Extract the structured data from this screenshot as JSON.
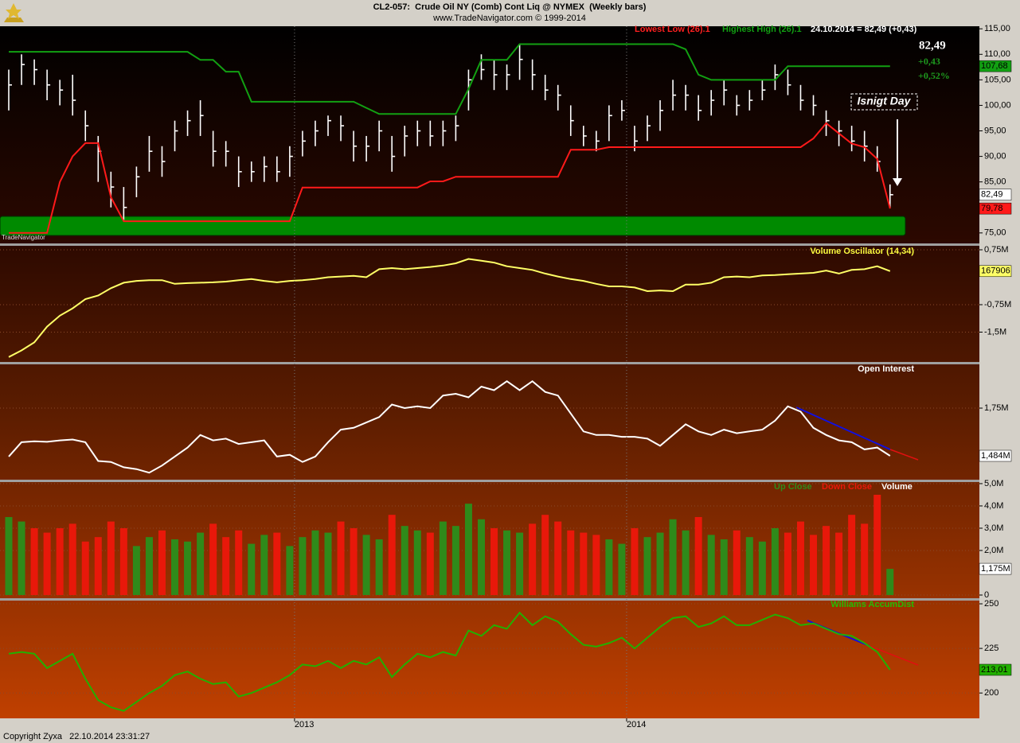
{
  "header": {
    "symbol": "CL2-057:  Crude Oil NY (Comb) Cont Liq @ NYMEX  (Weekly bars)",
    "source": "www.TradeNavigator.com © 1999-2014"
  },
  "footer": "Copyright Zyxa   22.10.2014 23:31:27",
  "chart_data": [
    {
      "type": "ohlc",
      "watermark": "TradeNavigator",
      "quote": "24.10.2014 = 82,49 (+0,43)",
      "last": "82,49",
      "change": "+0,43",
      "change_pct": "+0,52%",
      "annotation": "Isnigt Day",
      "color": "#ffffff",
      "last_label": "82,49",
      "high": [
        107,
        110,
        109,
        107,
        105,
        106,
        99,
        94,
        87,
        84,
        88,
        94,
        92,
        97,
        99,
        101,
        95,
        93,
        90,
        89,
        90,
        90,
        92,
        95,
        97,
        98,
        98,
        95,
        94,
        97,
        94,
        96,
        97,
        97,
        97,
        98,
        107,
        110,
        109,
        108,
        112,
        109,
        106,
        104,
        100,
        96,
        95,
        100,
        101,
        96,
        98,
        101,
        105,
        104,
        102,
        103,
        105,
        102,
        103,
        105,
        108,
        107,
        104,
        102,
        99,
        97,
        96,
        95,
        92,
        84.5
      ],
      "low": [
        99,
        104,
        104,
        101,
        100,
        98,
        93,
        85,
        80,
        77.5,
        82,
        87,
        86,
        91,
        94,
        94,
        88,
        88,
        84,
        85,
        85,
        85,
        86,
        90,
        92,
        94,
        93,
        89,
        89,
        91,
        87,
        90,
        92,
        92,
        92,
        93,
        99,
        105,
        103,
        103,
        105,
        103,
        101,
        99,
        94,
        92,
        91,
        93,
        97,
        91,
        93,
        95,
        99,
        99,
        97,
        98,
        100,
        98,
        99,
        101,
        103,
        102,
        99,
        98,
        94,
        92,
        91,
        89,
        87,
        79.8
      ],
      "close": [
        104,
        108,
        107,
        104,
        103,
        101,
        96,
        91,
        84,
        80,
        86,
        91,
        89,
        95,
        97,
        98,
        91,
        91,
        87,
        87,
        88,
        87,
        90,
        93,
        95,
        97,
        96,
        92,
        92,
        95,
        90,
        94,
        95,
        94,
        95,
        96,
        105,
        107,
        106,
        106,
        109,
        106,
        103,
        102,
        97,
        94,
        93,
        98,
        99,
        93,
        96,
        99,
        102,
        102,
        99,
        101,
        103,
        100,
        101,
        103,
        106,
        104,
        101,
        100,
        97,
        95,
        93,
        92,
        89,
        82.49
      ],
      "series": [
        {
          "name": "Lowest Low (26).1",
          "color": "#ff1a1a",
          "last_label": "79,78",
          "values": [
            75,
            75,
            75,
            75,
            85,
            90,
            92.6,
            92.6,
            82,
            77.3,
            77.3,
            77.3,
            77.3,
            77.3,
            77.3,
            77.3,
            77.3,
            77.3,
            77.3,
            77.3,
            77.3,
            77.3,
            77.3,
            83.9,
            83.9,
            83.9,
            83.9,
            83.9,
            83.9,
            83.9,
            83.9,
            83.9,
            83.9,
            85.1,
            85.1,
            86,
            86,
            86,
            86,
            86,
            86,
            86,
            86,
            86,
            91.3,
            91.3,
            91.3,
            91.8,
            91.8,
            91.8,
            91.8,
            91.8,
            91.8,
            91.8,
            91.8,
            91.8,
            91.8,
            91.8,
            91.8,
            91.8,
            91.8,
            91.8,
            91.8,
            93.5,
            96.5,
            94.5,
            92.5,
            91.8,
            89.5,
            79.78
          ]
        },
        {
          "name": "Highest High (26).1",
          "color": "#12a012",
          "last_label": "107,68",
          "values": [
            110.5,
            110.5,
            110.5,
            110.5,
            110.5,
            110.5,
            110.5,
            110.5,
            110.5,
            110.5,
            110.5,
            110.5,
            110.5,
            110.5,
            110.5,
            108.9,
            108.9,
            106.6,
            106.6,
            100.7,
            100.7,
            100.7,
            100.7,
            100.7,
            100.7,
            100.7,
            100.7,
            100.7,
            99.5,
            98.3,
            98.3,
            98.3,
            98.3,
            98.3,
            98.3,
            98.3,
            103.2,
            108.9,
            108.9,
            108.9,
            112,
            112,
            112,
            112,
            112,
            112,
            112,
            112,
            112,
            112,
            112,
            112,
            112,
            111,
            106,
            105,
            105,
            105,
            105,
            105,
            105,
            107.68,
            107.68,
            107.68,
            107.68,
            107.68,
            107.68,
            107.68,
            107.68,
            107.68
          ]
        }
      ],
      "ylim": [
        73.1,
        115.5
      ],
      "grid": false,
      "yticks": [
        {
          "value": 115,
          "label": "115,00"
        },
        {
          "value": 110,
          "label": "110,00"
        },
        {
          "value": 105,
          "label": "105,00"
        },
        {
          "value": 100,
          "label": "100,00"
        },
        {
          "value": 95,
          "label": "95,00"
        },
        {
          "value": 90,
          "label": "90,00"
        },
        {
          "value": 85,
          "label": "85,00"
        },
        {
          "value": 75,
          "label": "75,00"
        }
      ]
    },
    {
      "type": "line",
      "ylim": [
        -2.315,
        0.837
      ],
      "grid": true,
      "yticks": [
        {
          "value": 0.75,
          "label": "0,75M"
        },
        {
          "value": -0.75,
          "label": "-0,75M"
        },
        {
          "value": -1.5,
          "label": "-1,5M"
        }
      ],
      "series": [
        {
          "name": "Volume Oscillator (14,34)",
          "color": "#ffff66",
          "last_label": "167906",
          "values": [
            -2.18,
            -2.0,
            -1.78,
            -1.35,
            -1.05,
            -0.85,
            -0.6,
            -0.5,
            -0.3,
            -0.15,
            -0.1,
            -0.08,
            -0.08,
            -0.18,
            -0.16,
            -0.15,
            -0.14,
            -0.12,
            -0.08,
            -0.05,
            -0.1,
            -0.14,
            -0.1,
            -0.08,
            -0.05,
            0,
            0.02,
            0.04,
            0,
            0.22,
            0.25,
            0.22,
            0.25,
            0.28,
            0.32,
            0.38,
            0.5,
            0.45,
            0.4,
            0.3,
            0.25,
            0.2,
            0.1,
            0.02,
            -0.05,
            -0.1,
            -0.18,
            -0.25,
            -0.25,
            -0.28,
            -0.38,
            -0.36,
            -0.38,
            -0.2,
            -0.2,
            -0.15,
            0,
            0.02,
            0,
            0.05,
            0.06,
            0.08,
            0.1,
            0.12,
            0.18,
            0.1,
            0.2,
            0.22,
            0.3,
            0.167906
          ]
        }
      ]
    },
    {
      "type": "line",
      "ylim": [
        1.351,
        1.994
      ],
      "grid": true,
      "yticks": [
        {
          "value": 1.75,
          "label": "1,75M"
        }
      ],
      "series": [
        {
          "name": "Open Interest",
          "color": "#ffffff",
          "last_label": "1,484M",
          "values": [
            1.48,
            1.56,
            1.565,
            1.562,
            1.57,
            1.575,
            1.56,
            1.455,
            1.45,
            1.42,
            1.41,
            1.39,
            1.43,
            1.48,
            1.53,
            1.6,
            1.57,
            1.58,
            1.55,
            1.56,
            1.57,
            1.48,
            1.49,
            1.45,
            1.48,
            1.56,
            1.63,
            1.64,
            1.67,
            1.7,
            1.77,
            1.75,
            1.76,
            1.75,
            1.82,
            1.83,
            1.81,
            1.87,
            1.85,
            1.9,
            1.85,
            1.9,
            1.84,
            1.82,
            1.72,
            1.62,
            1.6,
            1.6,
            1.59,
            1.59,
            1.58,
            1.54,
            1.6,
            1.66,
            1.62,
            1.6,
            1.63,
            1.61,
            1.62,
            1.63,
            1.68,
            1.76,
            1.73,
            1.64,
            1.6,
            1.57,
            1.56,
            1.52,
            1.53,
            1.484
          ]
        }
      ]
    },
    {
      "type": "bar",
      "title": "Volume",
      "ylim": [
        -0.143,
        5.07
      ],
      "grid": true,
      "yticks": [
        {
          "value": 5,
          "label": "5,0M"
        },
        {
          "value": 4,
          "label": "4,0M"
        },
        {
          "value": 3,
          "label": "3,0M"
        },
        {
          "value": 2,
          "label": "2,0M"
        },
        0
      ],
      "series": [
        {
          "name": "Up Close",
          "color": "#2f8a1a",
          "last_label": "1,175M",
          "values": [
            3.5,
            3.3,
            null,
            null,
            null,
            null,
            null,
            null,
            null,
            null,
            2.2,
            2.6,
            null,
            2.5,
            2.4,
            2.8,
            null,
            null,
            null,
            2.3,
            2.7,
            null,
            2.2,
            2.6,
            2.9,
            2.8,
            null,
            null,
            2.7,
            2.5,
            null,
            3.1,
            2.9,
            null,
            3.3,
            3.1,
            4.1,
            3.4,
            null,
            2.9,
            2.8,
            null,
            null,
            null,
            null,
            null,
            null,
            2.5,
            2.3,
            null,
            2.6,
            2.8,
            3.4,
            2.9,
            null,
            2.7,
            2.5,
            null,
            2.6,
            2.4,
            3.0,
            null,
            null,
            null,
            null,
            null,
            null,
            null,
            null,
            1.175
          ]
        },
        {
          "name": "Down Close",
          "color": "#e8180a",
          "values": [
            null,
            null,
            3.0,
            2.8,
            3.0,
            3.2,
            2.4,
            2.6,
            3.3,
            3.0,
            null,
            null,
            2.9,
            null,
            null,
            null,
            3.2,
            2.6,
            2.9,
            null,
            null,
            2.8,
            null,
            null,
            null,
            null,
            3.3,
            3.0,
            null,
            null,
            3.6,
            null,
            null,
            2.8,
            null,
            null,
            null,
            null,
            3.0,
            null,
            null,
            3.2,
            3.6,
            3.3,
            2.9,
            2.8,
            2.7,
            null,
            null,
            3.0,
            null,
            null,
            null,
            null,
            3.5,
            null,
            null,
            2.9,
            null,
            null,
            null,
            2.8,
            3.3,
            2.7,
            3.1,
            2.8,
            3.6,
            3.2,
            4.5,
            null
          ]
        }
      ]
    },
    {
      "type": "line",
      "ylim": [
        185.8,
        251.8
      ],
      "grid": true,
      "yticks": [
        250,
        225,
        200
      ],
      "categories": [
        null,
        null,
        null,
        null,
        null,
        null,
        null,
        null,
        null,
        null,
        null,
        null,
        null,
        null,
        null,
        null,
        null,
        null,
        null,
        null,
        null,
        null,
        null,
        "2013",
        null,
        null,
        null,
        null,
        null,
        null,
        null,
        null,
        null,
        null,
        null,
        null,
        null,
        null,
        null,
        null,
        null,
        null,
        null,
        null,
        null,
        null,
        null,
        null,
        null,
        "2014",
        null,
        null,
        null,
        null,
        null,
        null,
        null,
        null,
        null,
        null,
        null,
        null,
        null,
        null,
        null,
        null,
        null,
        null,
        null,
        null
      ],
      "series": [
        {
          "name": "Williams AccumDist",
          "color": "#22b000",
          "last_label": "213,01",
          "values": [
            222,
            223,
            222,
            214,
            218,
            222,
            208,
            196,
            192,
            190,
            195,
            200,
            204,
            210,
            212,
            208,
            205,
            206,
            198,
            200,
            203,
            206,
            210,
            216,
            215,
            218,
            214,
            218,
            216,
            220,
            209,
            216,
            222,
            220,
            223,
            221,
            235,
            232,
            238,
            236,
            245,
            238,
            243,
            240,
            233,
            227,
            226,
            228,
            231,
            225,
            231,
            237,
            242,
            243,
            237,
            239,
            243,
            238,
            238,
            241,
            244,
            242,
            238,
            239,
            236,
            233,
            232,
            228,
            223,
            213.01
          ]
        }
      ]
    }
  ]
}
